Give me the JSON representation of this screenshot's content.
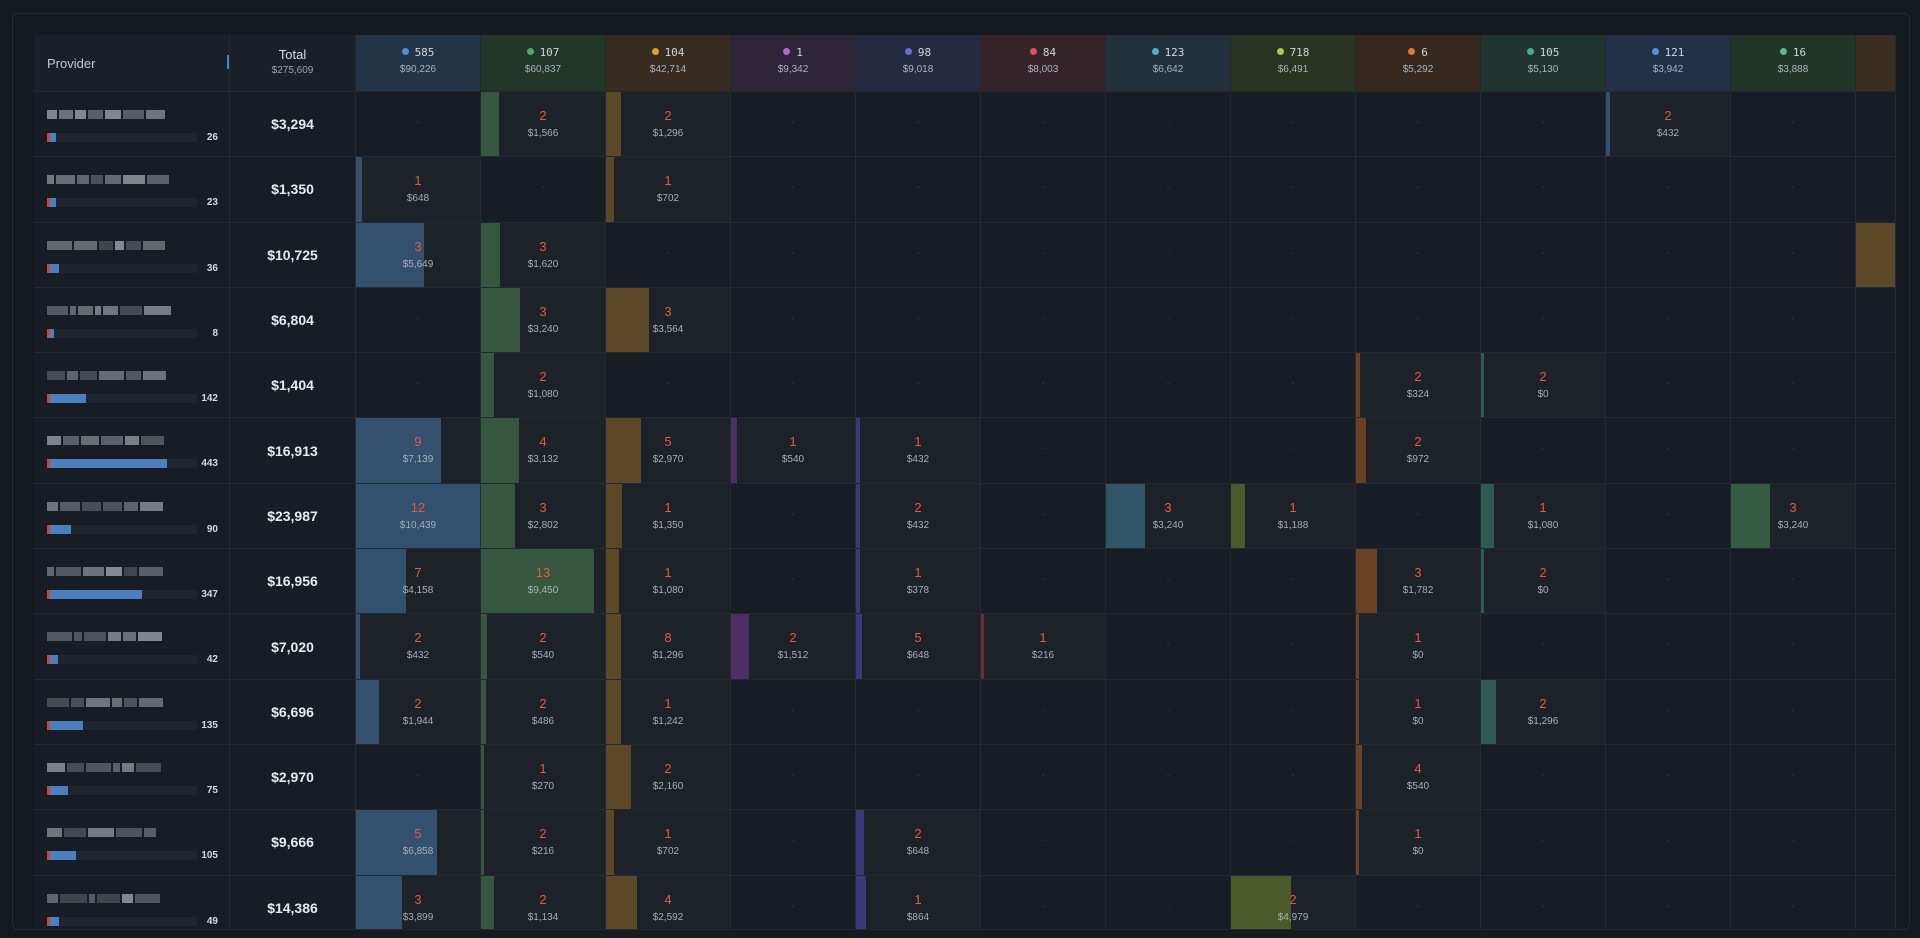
{
  "table": {
    "provider_header": "Provider",
    "total_header": "Total",
    "total_value": "$275,609",
    "columns": [
      {
        "count": "585",
        "amount": "$90,226",
        "dot": "#4a90d9",
        "bg": "#243447"
      },
      {
        "count": "107",
        "amount": "$60,837",
        "dot": "#4aa872",
        "bg": "#223629"
      },
      {
        "count": "104",
        "amount": "$42,714",
        "dot": "#e0a030",
        "bg": "#362c20"
      },
      {
        "count": "1",
        "amount": "$9,342",
        "dot": "#c15fd4",
        "bg": "#2f2538"
      },
      {
        "count": "98",
        "amount": "$9,018",
        "dot": "#6a6ae0",
        "bg": "#262a40"
      },
      {
        "count": "84",
        "amount": "$8,003",
        "dot": "#e05060",
        "bg": "#35232a"
      },
      {
        "count": "123",
        "amount": "$6,642",
        "dot": "#4ab0d4",
        "bg": "#22323d"
      },
      {
        "count": "718",
        "amount": "$6,491",
        "dot": "#9fd040",
        "bg": "#2b3322"
      },
      {
        "count": "6",
        "amount": "$5,292",
        "dot": "#e07a30",
        "bg": "#36281f"
      },
      {
        "count": "105",
        "amount": "$5,130",
        "dot": "#40b090",
        "bg": "#20352f"
      },
      {
        "count": "121",
        "amount": "$3,942",
        "dot": "#5090e0",
        "bg": "#223147"
      },
      {
        "count": "16",
        "amount": "$3,888",
        "dot": "#50c080",
        "bg": "#213528"
      }
    ],
    "extra_column_bg": "#3a2e20",
    "column_fill_colors": [
      "#33506e",
      "#37563f",
      "#5c4826",
      "#4e2f63",
      "#3a3a78",
      "#6b2e34",
      "#2f5566",
      "#4a5a28",
      "#6a4123",
      "#2f5a50",
      "#2f5077",
      "#355a42"
    ],
    "rows": [
      {
        "total": "$3,294",
        "count": "26",
        "bar": 0.04,
        "cells": [
          null,
          {
            "n": "2",
            "m": "$1,566",
            "f": 0.14
          },
          {
            "n": "2",
            "m": "$1,296",
            "f": 0.12
          },
          null,
          null,
          null,
          null,
          null,
          null,
          null,
          {
            "n": "2",
            "m": "$432",
            "f": 0.03
          },
          null
        ]
      },
      {
        "total": "$1,350",
        "count": "23",
        "bar": 0.04,
        "cells": [
          {
            "n": "1",
            "m": "$648",
            "f": 0.05
          },
          null,
          {
            "n": "1",
            "m": "$702",
            "f": 0.06
          },
          null,
          null,
          null,
          null,
          null,
          null,
          null,
          null,
          null
        ]
      },
      {
        "total": "$10,725",
        "count": "36",
        "bar": 0.06,
        "cells": [
          {
            "n": "3",
            "m": "$5,649",
            "f": 0.54
          },
          {
            "n": "3",
            "m": "$1,620",
            "f": 0.15
          },
          null,
          null,
          null,
          null,
          null,
          null,
          null,
          null,
          null,
          null
        ]
      },
      {
        "total": "$6,804",
        "count": "8",
        "bar": 0.0,
        "cells": [
          null,
          {
            "n": "3",
            "m": "$3,240",
            "f": 0.31
          },
          {
            "n": "3",
            "m": "$3,564",
            "f": 0.34
          },
          null,
          null,
          null,
          null,
          null,
          null,
          null,
          null,
          null
        ]
      },
      {
        "total": "$1,404",
        "count": "142",
        "bar": 0.24,
        "cells": [
          null,
          {
            "n": "2",
            "m": "$1,080",
            "f": 0.1
          },
          null,
          null,
          null,
          null,
          null,
          null,
          {
            "n": "2",
            "m": "$324",
            "f": 0.03
          },
          {
            "n": "2",
            "m": "$0",
            "f": 0.0
          },
          null,
          null
        ]
      },
      {
        "total": "$16,913",
        "count": "443",
        "bar": 0.78,
        "cells": [
          {
            "n": "9",
            "m": "$7,139",
            "f": 0.68
          },
          {
            "n": "4",
            "m": "$3,132",
            "f": 0.3
          },
          {
            "n": "5",
            "m": "$2,970",
            "f": 0.28
          },
          {
            "n": "1",
            "m": "$540",
            "f": 0.05
          },
          {
            "n": "1",
            "m": "$432",
            "f": 0.03
          },
          null,
          null,
          null,
          {
            "n": "2",
            "m": "$972",
            "f": 0.08
          },
          null,
          null,
          null
        ]
      },
      {
        "total": "$23,987",
        "count": "90",
        "bar": 0.14,
        "cells": [
          {
            "n": "12",
            "m": "$10,439",
            "f": 1.0
          },
          {
            "n": "3",
            "m": "$2,802",
            "f": 0.27
          },
          {
            "n": "1",
            "m": "$1,350",
            "f": 0.13
          },
          null,
          {
            "n": "2",
            "m": "$432",
            "f": 0.03
          },
          null,
          {
            "n": "3",
            "m": "$3,240",
            "f": 0.31
          },
          {
            "n": "1",
            "m": "$1,188",
            "f": 0.11
          },
          null,
          {
            "n": "1",
            "m": "$1,080",
            "f": 0.1
          },
          null,
          {
            "n": "3",
            "m": "$3,240",
            "f": 0.31
          }
        ]
      },
      {
        "total": "$16,956",
        "count": "347",
        "bar": 0.61,
        "cells": [
          {
            "n": "7",
            "m": "$4,158",
            "f": 0.4
          },
          {
            "n": "13",
            "m": "$9,450",
            "f": 0.9
          },
          {
            "n": "1",
            "m": "$1,080",
            "f": 0.1
          },
          null,
          {
            "n": "1",
            "m": "$378",
            "f": 0.03
          },
          null,
          null,
          null,
          {
            "n": "3",
            "m": "$1,782",
            "f": 0.17
          },
          {
            "n": "2",
            "m": "$0",
            "f": 0.0
          },
          null,
          null
        ]
      },
      {
        "total": "$7,020",
        "count": "42",
        "bar": 0.05,
        "cells": [
          {
            "n": "2",
            "m": "$432",
            "f": 0.03
          },
          {
            "n": "2",
            "m": "$540",
            "f": 0.05
          },
          {
            "n": "8",
            "m": "$1,296",
            "f": 0.12
          },
          {
            "n": "2",
            "m": "$1,512",
            "f": 0.14
          },
          {
            "n": "5",
            "m": "$648",
            "f": 0.05
          },
          {
            "n": "1",
            "m": "$216",
            "f": 0.02
          },
          null,
          null,
          {
            "n": "1",
            "m": "$0",
            "f": 0.0
          },
          null,
          null,
          null
        ]
      },
      {
        "total": "$6,696",
        "count": "135",
        "bar": 0.22,
        "cells": [
          {
            "n": "2",
            "m": "$1,944",
            "f": 0.18
          },
          {
            "n": "2",
            "m": "$486",
            "f": 0.04
          },
          {
            "n": "1",
            "m": "$1,242",
            "f": 0.12
          },
          null,
          null,
          null,
          null,
          null,
          {
            "n": "1",
            "m": "$0",
            "f": 0.0
          },
          {
            "n": "2",
            "m": "$1,296",
            "f": 0.12
          },
          null,
          null
        ]
      },
      {
        "total": "$2,970",
        "count": "75",
        "bar": 0.12,
        "cells": [
          null,
          {
            "n": "1",
            "m": "$270",
            "f": 0.02
          },
          {
            "n": "2",
            "m": "$2,160",
            "f": 0.2
          },
          null,
          null,
          null,
          null,
          null,
          {
            "n": "4",
            "m": "$540",
            "f": 0.05
          },
          null,
          null,
          null
        ]
      },
      {
        "total": "$9,666",
        "count": "105",
        "bar": 0.17,
        "cells": [
          {
            "n": "5",
            "m": "$6,858",
            "f": 0.65
          },
          {
            "n": "2",
            "m": "$216",
            "f": 0.02
          },
          {
            "n": "1",
            "m": "$702",
            "f": 0.06
          },
          null,
          {
            "n": "2",
            "m": "$648",
            "f": 0.06
          },
          null,
          null,
          null,
          {
            "n": "1",
            "m": "$0",
            "f": 0.0
          },
          null,
          null,
          null
        ]
      },
      {
        "total": "$14,386",
        "count": "49",
        "bar": 0.06,
        "cells": [
          {
            "n": "3",
            "m": "$3,899",
            "f": 0.37
          },
          {
            "n": "2",
            "m": "$1,134",
            "f": 0.1
          },
          {
            "n": "4",
            "m": "$2,592",
            "f": 0.25
          },
          null,
          {
            "n": "1",
            "m": "$864",
            "f": 0.08
          },
          null,
          null,
          {
            "n": "2",
            "m": "$4,979",
            "f": 0.48
          },
          null,
          null,
          null,
          null
        ]
      }
    ],
    "extra_cells": [
      false,
      false,
      true,
      false,
      false,
      false,
      false,
      false,
      false,
      false,
      false,
      false,
      false
    ],
    "empty_mark": "-"
  }
}
